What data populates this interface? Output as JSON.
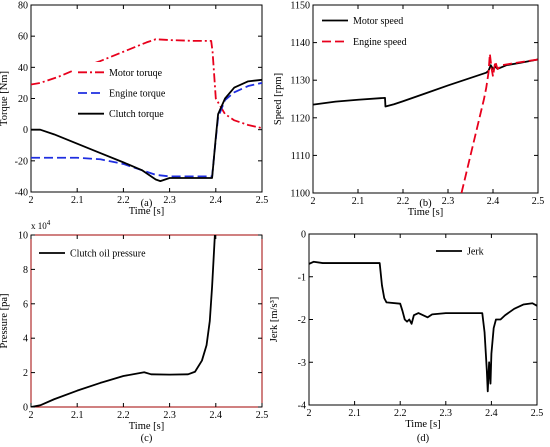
{
  "chart_data": [
    {
      "id": "a",
      "type": "line",
      "caption": "(a)",
      "xlabel": "Time [s]",
      "ylabel": "Torque [Nm]",
      "xlim": [
        2,
        2.5
      ],
      "ylim": [
        -40,
        80
      ],
      "xticks": [
        2,
        2.1,
        2.2,
        2.3,
        2.4,
        2.5
      ],
      "yticks": [
        -40,
        -20,
        0,
        20,
        40,
        60,
        80
      ],
      "legend_position": "center-right",
      "series": [
        {
          "name": "Motor toruqe",
          "color": "#e8001c",
          "style": "dashdot",
          "points": [
            [
              2.0,
              29
            ],
            [
              2.02,
              30
            ],
            [
              2.06,
              34
            ],
            [
              2.1,
              39
            ],
            [
              2.15,
              44
            ],
            [
              2.2,
              50
            ],
            [
              2.25,
              56
            ],
            [
              2.27,
              58
            ],
            [
              2.3,
              57.5
            ],
            [
              2.35,
              57
            ],
            [
              2.39,
              57
            ],
            [
              2.393,
              50
            ],
            [
              2.4,
              20
            ],
            [
              2.42,
              10
            ],
            [
              2.44,
              6
            ],
            [
              2.47,
              3
            ],
            [
              2.5,
              1
            ]
          ]
        },
        {
          "name": "Engine torque",
          "color": "#1f2ee0",
          "style": "dashed",
          "points": [
            [
              2.0,
              -18
            ],
            [
              2.1,
              -18
            ],
            [
              2.15,
              -19
            ],
            [
              2.2,
              -22
            ],
            [
              2.24,
              -26
            ],
            [
              2.27,
              -29
            ],
            [
              2.3,
              -30
            ],
            [
              2.33,
              -30
            ],
            [
              2.392,
              -30
            ],
            [
              2.4,
              -6
            ],
            [
              2.405,
              8
            ],
            [
              2.42,
              19
            ],
            [
              2.44,
              24
            ],
            [
              2.47,
              28
            ],
            [
              2.5,
              30
            ]
          ]
        },
        {
          "name": "Clutch torque",
          "color": "#000000",
          "style": "solid",
          "points": [
            [
              2.0,
              0
            ],
            [
              2.02,
              0
            ],
            [
              2.05,
              -3
            ],
            [
              2.1,
              -9
            ],
            [
              2.15,
              -15
            ],
            [
              2.2,
              -21
            ],
            [
              2.24,
              -26
            ],
            [
              2.27,
              -32
            ],
            [
              2.28,
              -33
            ],
            [
              2.3,
              -31
            ],
            [
              2.35,
              -31
            ],
            [
              2.392,
              -31
            ],
            [
              2.4,
              -5
            ],
            [
              2.405,
              10
            ],
            [
              2.42,
              20
            ],
            [
              2.44,
              27
            ],
            [
              2.47,
              31
            ],
            [
              2.5,
              32
            ]
          ]
        }
      ]
    },
    {
      "id": "b",
      "type": "line",
      "caption": "(b)",
      "xlabel": "Time [s]",
      "ylabel": "Speed [rpm]",
      "xlim": [
        2,
        2.5
      ],
      "ylim": [
        1100,
        1150
      ],
      "xticks": [
        2,
        2.1,
        2.2,
        2.3,
        2.4,
        2.5
      ],
      "yticks": [
        1100,
        1110,
        1120,
        1130,
        1140,
        1150
      ],
      "legend_position": "top-left",
      "series": [
        {
          "name": "Motor speed",
          "color": "#000000",
          "style": "solid",
          "points": [
            [
              2.0,
              1123.5
            ],
            [
              2.05,
              1124.3
            ],
            [
              2.1,
              1124.8
            ],
            [
              2.16,
              1125.3
            ],
            [
              2.161,
              1123
            ],
            [
              2.18,
              1123.6
            ],
            [
              2.2,
              1124.4
            ],
            [
              2.25,
              1126.5
            ],
            [
              2.3,
              1128.6
            ],
            [
              2.35,
              1130.6
            ],
            [
              2.385,
              1132
            ],
            [
              2.39,
              1132.5
            ],
            [
              2.395,
              1134
            ],
            [
              2.4,
              1133
            ],
            [
              2.405,
              1133.6
            ],
            [
              2.41,
              1133
            ],
            [
              2.43,
              1134
            ],
            [
              2.46,
              1134.6
            ],
            [
              2.5,
              1135.5
            ]
          ]
        },
        {
          "name": "Engine speed",
          "color": "#e8001c",
          "style": "dashed",
          "points": [
            [
              2.33,
              1100
            ],
            [
              2.35,
              1110
            ],
            [
              2.37,
              1120
            ],
            [
              2.38,
              1125
            ],
            [
              2.385,
              1128
            ],
            [
              2.39,
              1132
            ],
            [
              2.393,
              1137
            ],
            [
              2.397,
              1133
            ],
            [
              2.4,
              1131
            ],
            [
              2.405,
              1135
            ],
            [
              2.41,
              1133
            ],
            [
              2.42,
              1134
            ],
            [
              2.45,
              1134.6
            ],
            [
              2.5,
              1135.5
            ]
          ]
        }
      ]
    },
    {
      "id": "c",
      "type": "line",
      "caption": "(c)",
      "xlabel": "Time [s]",
      "ylabel": "Pressure [pa]",
      "exponent": "x 10",
      "exponent_power": "4",
      "xlim": [
        2,
        2.5
      ],
      "ylim": [
        0,
        10
      ],
      "xticks": [
        2,
        2.1,
        2.2,
        2.3,
        2.4,
        2.5
      ],
      "yticks": [
        0,
        2,
        4,
        6,
        8,
        10
      ],
      "legend_position": "top-left",
      "series": [
        {
          "name": "Clutch oil pressure",
          "color": "#000000",
          "style": "solid",
          "points": [
            [
              2.0,
              0
            ],
            [
              2.02,
              0.1
            ],
            [
              2.05,
              0.45
            ],
            [
              2.1,
              0.95
            ],
            [
              2.15,
              1.4
            ],
            [
              2.2,
              1.8
            ],
            [
              2.245,
              2.02
            ],
            [
              2.26,
              1.9
            ],
            [
              2.3,
              1.88
            ],
            [
              2.34,
              1.9
            ],
            [
              2.355,
              2.05
            ],
            [
              2.37,
              2.7
            ],
            [
              2.38,
              3.6
            ],
            [
              2.387,
              5
            ],
            [
              2.392,
              7
            ],
            [
              2.395,
              8.5
            ],
            [
              2.398,
              10
            ]
          ]
        }
      ]
    },
    {
      "id": "d",
      "type": "line",
      "caption": "(d)",
      "xlabel": "Time [s]",
      "ylabel": "Jerk [m/s³]",
      "xlim": [
        2,
        2.5
      ],
      "ylim": [
        -4,
        0
      ],
      "xticks": [
        2,
        2.1,
        2.2,
        2.3,
        2.4,
        2.5
      ],
      "yticks": [
        -4,
        -3,
        -2,
        -1,
        0
      ],
      "legend_position": "top-right",
      "series": [
        {
          "name": "Jerk",
          "color": "#000000",
          "style": "solid",
          "points": [
            [
              2.0,
              -0.7
            ],
            [
              2.01,
              -0.65
            ],
            [
              2.03,
              -0.68
            ],
            [
              2.1,
              -0.68
            ],
            [
              2.155,
              -0.68
            ],
            [
              2.16,
              -1.2
            ],
            [
              2.165,
              -1.5
            ],
            [
              2.17,
              -1.6
            ],
            [
              2.2,
              -1.63
            ],
            [
              2.205,
              -1.8
            ],
            [
              2.21,
              -2.0
            ],
            [
              2.215,
              -2.05
            ],
            [
              2.22,
              -2.0
            ],
            [
              2.225,
              -2.1
            ],
            [
              2.23,
              -1.9
            ],
            [
              2.24,
              -1.85
            ],
            [
              2.25,
              -1.9
            ],
            [
              2.26,
              -1.95
            ],
            [
              2.27,
              -1.88
            ],
            [
              2.3,
              -1.85
            ],
            [
              2.38,
              -1.85
            ],
            [
              2.385,
              -2.3
            ],
            [
              2.39,
              -3.2
            ],
            [
              2.392,
              -3.68
            ],
            [
              2.395,
              -3.0
            ],
            [
              2.398,
              -3.5
            ],
            [
              2.4,
              -2.8
            ],
            [
              2.405,
              -2.2
            ],
            [
              2.41,
              -2.0
            ],
            [
              2.42,
              -2.0
            ],
            [
              2.43,
              -1.9
            ],
            [
              2.45,
              -1.75
            ],
            [
              2.47,
              -1.65
            ],
            [
              2.49,
              -1.62
            ],
            [
              2.5,
              -1.68
            ]
          ]
        }
      ]
    }
  ]
}
